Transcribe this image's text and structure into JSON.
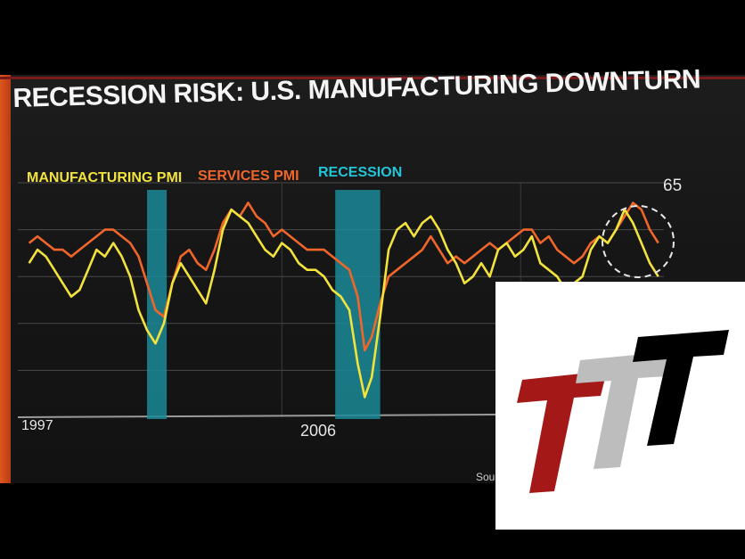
{
  "title": "RECESSION RISK: U.S. MANUFACTURING DOWNTURN",
  "source_fragment": "Sou",
  "chart_data": {
    "type": "line",
    "legend": [
      {
        "name": "MANUFACTURING PMI",
        "color": "#f2e33c"
      },
      {
        "name": "SERVICES PMI",
        "color": "#f0662a"
      },
      {
        "name": "RECESSION",
        "color": "#22c6d8"
      }
    ],
    "x_ticks": [
      "1997",
      "2006"
    ],
    "y_ticks": [
      "65"
    ],
    "grid": true,
    "recessions": [
      [
        2001.2,
        2001.9
      ],
      [
        2007.9,
        2009.5
      ]
    ],
    "series": [
      {
        "name": "MANUFACTURING PMI",
        "color": "#f2e33c",
        "x": [
          1997.0,
          1997.3,
          1997.6,
          1997.9,
          1998.2,
          1998.5,
          1998.8,
          1999.1,
          1999.4,
          1999.7,
          2000.0,
          2000.3,
          2000.6,
          2000.9,
          2001.2,
          2001.5,
          2001.8,
          2002.1,
          2002.4,
          2002.7,
          2003.0,
          2003.3,
          2003.6,
          2003.9,
          2004.2,
          2004.5,
          2004.8,
          2005.1,
          2005.4,
          2005.7,
          2006.0,
          2006.3,
          2006.6,
          2006.9,
          2007.2,
          2007.5,
          2007.8,
          2008.1,
          2008.4,
          2008.7,
          2008.95,
          2009.2,
          2009.5,
          2009.8,
          2010.1,
          2010.4,
          2010.7,
          2011.0,
          2011.3,
          2011.6,
          2011.9,
          2012.2,
          2012.5,
          2012.8,
          2013.1,
          2013.4,
          2013.7,
          2014.0,
          2014.3,
          2014.6,
          2014.9,
          2015.2,
          2015.5,
          2015.8,
          2016.1,
          2016.4,
          2016.7,
          2017.0,
          2017.3,
          2017.6,
          2017.9,
          2018.2,
          2018.5,
          2018.8,
          2019.1,
          2019.4
        ],
        "values": [
          53,
          55,
          54,
          52,
          50,
          48,
          49,
          52,
          55,
          54,
          56,
          54,
          51,
          46,
          43,
          41,
          44,
          50,
          53,
          51,
          49,
          47,
          52,
          58,
          61,
          60,
          59,
          57,
          55,
          54,
          56,
          55,
          53,
          52,
          52,
          51,
          49,
          48,
          46,
          38,
          33,
          36,
          45,
          55,
          58,
          59,
          57,
          59,
          60,
          58,
          55,
          53,
          50,
          51,
          53,
          51,
          55,
          56,
          54,
          55,
          57,
          53,
          52,
          51,
          49,
          50,
          51,
          55,
          57,
          56,
          58,
          61,
          59,
          56,
          53,
          51
        ]
      },
      {
        "name": "SERVICES PMI",
        "color": "#f0662a",
        "x": [
          1997.0,
          1997.3,
          1997.6,
          1997.9,
          1998.2,
          1998.5,
          1998.8,
          1999.1,
          1999.4,
          1999.7,
          2000.0,
          2000.3,
          2000.6,
          2000.9,
          2001.2,
          2001.5,
          2001.8,
          2002.1,
          2002.4,
          2002.7,
          2003.0,
          2003.3,
          2003.6,
          2003.9,
          2004.2,
          2004.5,
          2004.8,
          2005.1,
          2005.4,
          2005.7,
          2006.0,
          2006.3,
          2006.6,
          2006.9,
          2007.2,
          2007.5,
          2007.8,
          2008.1,
          2008.4,
          2008.7,
          2008.95,
          2009.2,
          2009.5,
          2009.8,
          2010.1,
          2010.4,
          2010.7,
          2011.0,
          2011.3,
          2011.6,
          2011.9,
          2012.2,
          2012.5,
          2012.8,
          2013.1,
          2013.4,
          2013.7,
          2014.0,
          2014.3,
          2014.6,
          2014.9,
          2015.2,
          2015.5,
          2015.8,
          2016.1,
          2016.4,
          2016.7,
          2017.0,
          2017.3,
          2017.6,
          2017.9,
          2018.2,
          2018.5,
          2018.8,
          2019.1,
          2019.4
        ],
        "values": [
          56,
          57,
          56,
          55,
          55,
          54,
          55,
          56,
          57,
          58,
          58,
          57,
          56,
          54,
          50,
          46,
          45,
          50,
          54,
          55,
          53,
          52,
          55,
          59,
          61,
          60,
          62,
          60,
          59,
          57,
          58,
          57,
          56,
          55,
          55,
          55,
          54,
          53,
          52,
          48,
          40,
          42,
          47,
          51,
          52,
          53,
          54,
          55,
          57,
          55,
          53,
          54,
          53,
          54,
          55,
          56,
          55,
          56,
          57,
          58,
          58,
          56,
          57,
          55,
          54,
          53,
          54,
          56,
          57,
          56,
          58,
          60,
          62,
          61,
          58,
          56
        ]
      }
    ]
  }
}
